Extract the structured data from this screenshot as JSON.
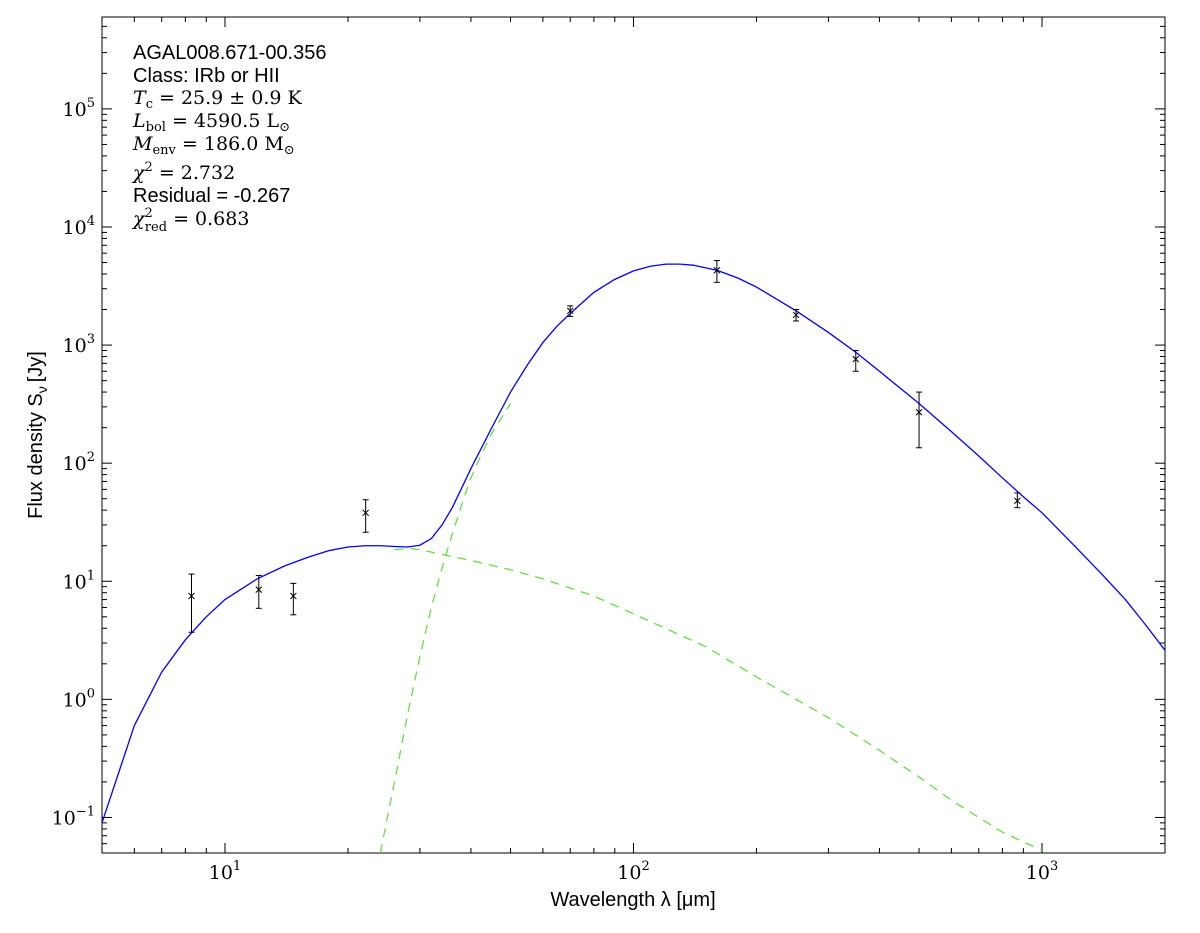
{
  "chart_data": {
    "type": "scatter",
    "xlabel": "Wavelength λ [μm]",
    "ylabel": "Flux density S",
    "ylabel_sub": "ν",
    "ylabel_unit": "[Jy]",
    "xscale": "log",
    "yscale": "log",
    "xlim": [
      5,
      2000
    ],
    "ylim": [
      0.05,
      600000
    ],
    "x_ticks": [
      {
        "value": 10,
        "base": "10",
        "exp": "1"
      },
      {
        "value": 100,
        "base": "10",
        "exp": "2"
      },
      {
        "value": 1000,
        "base": "10",
        "exp": "3"
      }
    ],
    "y_ticks": [
      {
        "value": 0.1,
        "base": "10",
        "exp": "−1"
      },
      {
        "value": 1,
        "base": "10",
        "exp": "0"
      },
      {
        "value": 10,
        "base": "10",
        "exp": "1"
      },
      {
        "value": 100,
        "base": "10",
        "exp": "2"
      },
      {
        "value": 1000,
        "base": "10",
        "exp": "3"
      },
      {
        "value": 10000,
        "base": "10",
        "exp": "4"
      },
      {
        "value": 100000,
        "base": "10",
        "exp": "5"
      }
    ],
    "grid": false,
    "annotations": {
      "source": "AGAL008.671-00.356",
      "class": "Class: IRb or HII",
      "tc": {
        "symbol": "T",
        "sub": "c",
        "text": " = 25.9 ± 0.9 K"
      },
      "lbol": {
        "symbol": "L",
        "sub": "bol",
        "text": " = 4590.5 L",
        "unit_sub": "⊙"
      },
      "menv": {
        "symbol": "M",
        "sub": "env",
        "text": " = 186.0 M",
        "unit_sub": "⊙"
      },
      "chi2": {
        "symbol": "χ",
        "sup": "2",
        "text": " = 2.732"
      },
      "residual": "Residual = -0.267",
      "chi2red": {
        "symbol": "χ",
        "sup": "2",
        "sub": "red",
        "text": " = 0.683"
      }
    },
    "data_points": [
      {
        "x": 8.28,
        "y": 7.5,
        "yerr_low": 3.7,
        "yerr_high": 11.5
      },
      {
        "x": 12.1,
        "y": 8.5,
        "yerr_low": 5.9,
        "yerr_high": 11.2
      },
      {
        "x": 14.7,
        "y": 7.5,
        "yerr_low": 5.2,
        "yerr_high": 9.6
      },
      {
        "x": 22.1,
        "y": 38,
        "yerr_low": 26,
        "yerr_high": 49
      },
      {
        "x": 70,
        "y": 1950,
        "yerr_low": 1750,
        "yerr_high": 2150
      },
      {
        "x": 160,
        "y": 4300,
        "yerr_low": 3400,
        "yerr_high": 5200
      },
      {
        "x": 250,
        "y": 1800,
        "yerr_low": 1600,
        "yerr_high": 2000
      },
      {
        "x": 350,
        "y": 760,
        "yerr_low": 600,
        "yerr_high": 900
      },
      {
        "x": 500,
        "y": 270,
        "yerr_low": 135,
        "yerr_high": 400
      },
      {
        "x": 870,
        "y": 48,
        "yerr_low": 42,
        "yerr_high": 56
      }
    ],
    "series": [
      {
        "style": "solid",
        "color": "#0000ff",
        "points": [
          [
            5,
            0.09
          ],
          [
            6,
            0.6
          ],
          [
            7,
            1.7
          ],
          [
            8,
            3.2
          ],
          [
            9,
            5.0
          ],
          [
            10,
            7.0
          ],
          [
            12,
            10.5
          ],
          [
            14,
            13.5
          ],
          [
            16,
            16.0
          ],
          [
            18,
            18.2
          ],
          [
            20,
            19.5
          ],
          [
            22,
            20.0
          ],
          [
            24,
            20.0
          ],
          [
            26,
            19.7
          ],
          [
            28,
            19.5
          ],
          [
            30,
            20.2
          ],
          [
            32,
            23
          ],
          [
            34,
            30
          ],
          [
            36,
            42
          ],
          [
            38,
            62
          ],
          [
            40,
            90
          ],
          [
            45,
            200
          ],
          [
            50,
            400
          ],
          [
            55,
            680
          ],
          [
            60,
            1050
          ],
          [
            65,
            1450
          ],
          [
            70,
            1850
          ],
          [
            80,
            2800
          ],
          [
            90,
            3600
          ],
          [
            100,
            4250
          ],
          [
            110,
            4650
          ],
          [
            120,
            4850
          ],
          [
            130,
            4850
          ],
          [
            140,
            4750
          ],
          [
            160,
            4300
          ],
          [
            180,
            3700
          ],
          [
            200,
            3100
          ],
          [
            250,
            1950
          ],
          [
            300,
            1280
          ],
          [
            350,
            870
          ],
          [
            400,
            600
          ],
          [
            500,
            320
          ],
          [
            600,
            185
          ],
          [
            700,
            115
          ],
          [
            800,
            75
          ],
          [
            900,
            52
          ],
          [
            1000,
            38
          ],
          [
            1200,
            20
          ],
          [
            1400,
            11.5
          ],
          [
            1600,
            7
          ],
          [
            1800,
            4.2
          ],
          [
            2000,
            2.6
          ]
        ]
      },
      {
        "style": "dashed",
        "color": "#66dd44",
        "points": [
          [
            24,
            0.05
          ],
          [
            26,
            0.2
          ],
          [
            28,
            0.75
          ],
          [
            30,
            2.3
          ],
          [
            32,
            6
          ],
          [
            34,
            13
          ],
          [
            36,
            25
          ],
          [
            38,
            45
          ],
          [
            40,
            75
          ],
          [
            42,
            110
          ],
          [
            45,
            180
          ],
          [
            50,
            320
          ]
        ]
      },
      {
        "style": "dashed",
        "color": "#66dd44",
        "points": [
          [
            26,
            18.5
          ],
          [
            28,
            19
          ],
          [
            30,
            18.5
          ],
          [
            40,
            15
          ],
          [
            50,
            12.5
          ],
          [
            60,
            10.5
          ],
          [
            80,
            7.5
          ],
          [
            100,
            5.3
          ],
          [
            150,
            2.8
          ],
          [
            200,
            1.55
          ],
          [
            300,
            0.7
          ],
          [
            400,
            0.37
          ],
          [
            500,
            0.22
          ],
          [
            600,
            0.14
          ],
          [
            700,
            0.1
          ],
          [
            800,
            0.075
          ],
          [
            900,
            0.062
          ],
          [
            1000,
            0.053
          ]
        ]
      }
    ]
  }
}
